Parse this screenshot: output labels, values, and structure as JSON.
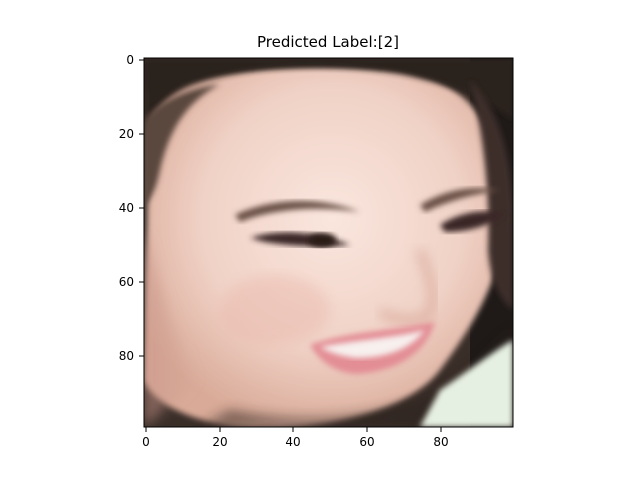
{
  "title": "Predicted Label:[2]",
  "image": {
    "description": "Close-up face crop of a smiling woman with dark hair, eyes looking down-left",
    "colors": {
      "skin": "#f3d9d0",
      "skin_shadow": "#d8a593",
      "hair": "#2c211c",
      "lips": "#e38d94",
      "background_dark": "#1f1a18",
      "collar": "#e6f0e2"
    }
  },
  "axes": {
    "x_ticks": [
      "0",
      "20",
      "40",
      "60",
      "80"
    ],
    "y_ticks": [
      "0",
      "20",
      "40",
      "60",
      "80"
    ]
  }
}
